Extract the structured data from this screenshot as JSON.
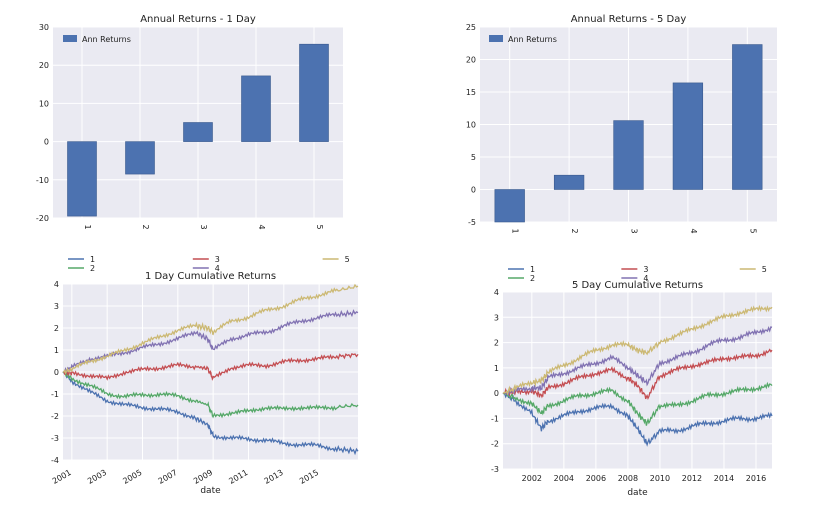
{
  "colors": {
    "panel": "#EAEAF2",
    "grid": "#ffffff",
    "bar": "#4C72B0",
    "s1": "#4C72B0",
    "s2": "#55A868",
    "s3": "#C44E52",
    "s4": "#8172B2",
    "s5": "#CCB974"
  },
  "chart_data": [
    {
      "type": "bar",
      "title": "Annual Returns - 1 Day",
      "legend": "Ann Returns",
      "legend_loc": "top-left",
      "categories": [
        "1",
        "2",
        "3",
        "4",
        "5"
      ],
      "values": [
        -19.5,
        -8.5,
        5.0,
        17.2,
        25.5
      ],
      "ylim": [
        -20,
        30
      ],
      "yticks": [
        -20,
        -10,
        0,
        10,
        20,
        30
      ],
      "grid": true
    },
    {
      "type": "bar",
      "title": "Annual Returns - 5 Day",
      "legend": "Ann Returns",
      "legend_loc": "top-left",
      "categories": [
        "1",
        "2",
        "3",
        "4",
        "5"
      ],
      "values": [
        -5.0,
        2.2,
        10.6,
        16.4,
        22.3
      ],
      "ylim": [
        -5,
        25
      ],
      "yticks": [
        -5,
        0,
        5,
        10,
        15,
        20,
        25
      ],
      "grid": true
    },
    {
      "type": "line",
      "title": "1 Day Cumulative Returns",
      "xlabel": "date",
      "legend_loc": "above",
      "xlim": [
        2000.5,
        2017.2
      ],
      "ylim": [
        -4,
        4
      ],
      "xticks": [
        "2001",
        "2003",
        "2005",
        "2007",
        "2009",
        "2011",
        "2013",
        "2015"
      ],
      "yticks": [
        -4,
        -3,
        -2,
        -1,
        0,
        1,
        2,
        3,
        4
      ],
      "grid": true,
      "series": [
        {
          "name": "1",
          "x": [
            2000.5,
            2001,
            2002,
            2003,
            2004,
            2005,
            2006,
            2007,
            2008,
            2008.7,
            2009,
            2010,
            2011,
            2012,
            2013,
            2014,
            2015,
            2016,
            2017.2
          ],
          "values": [
            0,
            -0.4,
            -0.9,
            -1.3,
            -1.5,
            -1.6,
            -1.7,
            -1.8,
            -2.1,
            -2.4,
            -2.9,
            -3.0,
            -3.05,
            -3.1,
            -3.25,
            -3.3,
            -3.35,
            -3.5,
            -3.6
          ]
        },
        {
          "name": "2",
          "x": [
            2000.5,
            2001,
            2002,
            2003,
            2004,
            2005,
            2006,
            2007,
            2008,
            2008.7,
            2009,
            2010,
            2011,
            2012,
            2013,
            2014,
            2015,
            2016,
            2017.2
          ],
          "values": [
            0,
            -0.3,
            -0.6,
            -1.0,
            -1.1,
            -1.05,
            -1.0,
            -1.1,
            -1.3,
            -1.5,
            -2.0,
            -1.85,
            -1.8,
            -1.6,
            -1.7,
            -1.6,
            -1.65,
            -1.6,
            -1.5
          ]
        },
        {
          "name": "3",
          "x": [
            2000.5,
            2001,
            2002,
            2003,
            2004,
            2005,
            2006,
            2007,
            2008,
            2008.7,
            2009,
            2010,
            2011,
            2012,
            2013,
            2014,
            2015,
            2016,
            2017.2
          ],
          "values": [
            0,
            -0.05,
            -0.15,
            -0.3,
            0.0,
            0.1,
            0.2,
            0.3,
            0.25,
            0.15,
            -0.3,
            0.2,
            0.3,
            0.3,
            0.45,
            0.55,
            0.6,
            0.7,
            0.8
          ]
        },
        {
          "name": "4",
          "x": [
            2000.5,
            2001,
            2002,
            2003,
            2004,
            2005,
            2006,
            2007,
            2008,
            2008.7,
            2009,
            2010,
            2011,
            2012,
            2013,
            2014,
            2015,
            2016,
            2017.2
          ],
          "values": [
            0,
            0.2,
            0.6,
            0.7,
            0.9,
            1.1,
            1.3,
            1.5,
            1.8,
            1.5,
            1.0,
            1.5,
            1.7,
            1.8,
            2.1,
            2.3,
            2.5,
            2.6,
            2.7
          ]
        },
        {
          "name": "5",
          "x": [
            2000.5,
            2001,
            2002,
            2003,
            2004,
            2005,
            2006,
            2007,
            2008,
            2008.7,
            2009,
            2010,
            2011,
            2012,
            2013,
            2014,
            2015,
            2016,
            2017.2
          ],
          "values": [
            0,
            0.1,
            0.5,
            0.7,
            1.0,
            1.3,
            1.6,
            1.9,
            2.1,
            2.0,
            1.8,
            2.3,
            2.5,
            2.8,
            3.0,
            3.3,
            3.5,
            3.7,
            3.9
          ]
        }
      ]
    },
    {
      "type": "line",
      "title": "5 Day Cumulative Returns",
      "xlabel": "date",
      "legend_loc": "above",
      "xlim": [
        2000.2,
        2017.0
      ],
      "ylim": [
        -3,
        4
      ],
      "xticks": [
        "2002",
        "2004",
        "2006",
        "2008",
        "2010",
        "2012",
        "2014",
        "2016"
      ],
      "yticks": [
        -3,
        -2,
        -1,
        0,
        1,
        2,
        3,
        4
      ],
      "grid": true,
      "series": [
        {
          "name": "1",
          "x": [
            2000.2,
            2001,
            2002,
            2002.6,
            2003,
            2004,
            2005,
            2006,
            2007,
            2008,
            2008.6,
            2009.2,
            2010,
            2011,
            2012,
            2013,
            2014,
            2015,
            2016,
            2017
          ],
          "values": [
            0,
            -0.3,
            -0.8,
            -1.4,
            -1.1,
            -0.9,
            -0.7,
            -0.6,
            -0.5,
            -0.9,
            -1.4,
            -2.0,
            -1.5,
            -1.5,
            -1.3,
            -1.2,
            -1.1,
            -1.0,
            -1.0,
            -0.9
          ]
        },
        {
          "name": "2",
          "x": [
            2000.2,
            2001,
            2002,
            2002.6,
            2003,
            2004,
            2005,
            2006,
            2007,
            2008,
            2008.6,
            2009.2,
            2010,
            2011,
            2012,
            2013,
            2014,
            2015,
            2016,
            2017
          ],
          "values": [
            0,
            -0.2,
            -0.4,
            -0.8,
            -0.5,
            -0.3,
            -0.1,
            0.0,
            0.1,
            -0.3,
            -0.8,
            -1.2,
            -0.5,
            -0.5,
            -0.3,
            -0.1,
            0.0,
            0.1,
            0.2,
            0.3
          ]
        },
        {
          "name": "3",
          "x": [
            2000.2,
            2001,
            2002,
            2002.6,
            2003,
            2004,
            2005,
            2006,
            2007,
            2008,
            2008.6,
            2009.2,
            2010,
            2011,
            2012,
            2013,
            2014,
            2015,
            2016,
            2017
          ],
          "values": [
            0,
            0.05,
            0.1,
            -0.1,
            0.2,
            0.4,
            0.6,
            0.8,
            0.9,
            0.6,
            0.3,
            -0.2,
            0.7,
            0.9,
            1.1,
            1.2,
            1.4,
            1.4,
            1.5,
            1.7
          ]
        },
        {
          "name": "4",
          "x": [
            2000.2,
            2001,
            2002,
            2002.6,
            2003,
            2004,
            2005,
            2006,
            2007,
            2008,
            2008.6,
            2009.2,
            2010,
            2011,
            2012,
            2013,
            2014,
            2015,
            2016,
            2017
          ],
          "values": [
            0,
            0.1,
            0.2,
            0.2,
            0.6,
            0.8,
            1.0,
            1.2,
            1.4,
            1.0,
            0.7,
            0.4,
            1.2,
            1.4,
            1.6,
            1.9,
            2.1,
            2.2,
            2.4,
            2.6
          ]
        },
        {
          "name": "5",
          "x": [
            2000.2,
            2001,
            2002,
            2002.6,
            2003,
            2004,
            2005,
            2006,
            2007,
            2008,
            2008.6,
            2009.2,
            2010,
            2011,
            2012,
            2013,
            2014,
            2015,
            2016,
            2017
          ],
          "values": [
            0,
            0.2,
            0.4,
            0.5,
            0.8,
            1.1,
            1.4,
            1.7,
            1.9,
            1.9,
            1.7,
            1.6,
            2.0,
            2.3,
            2.5,
            2.8,
            3.0,
            3.2,
            3.3,
            3.4
          ]
        }
      ]
    }
  ]
}
